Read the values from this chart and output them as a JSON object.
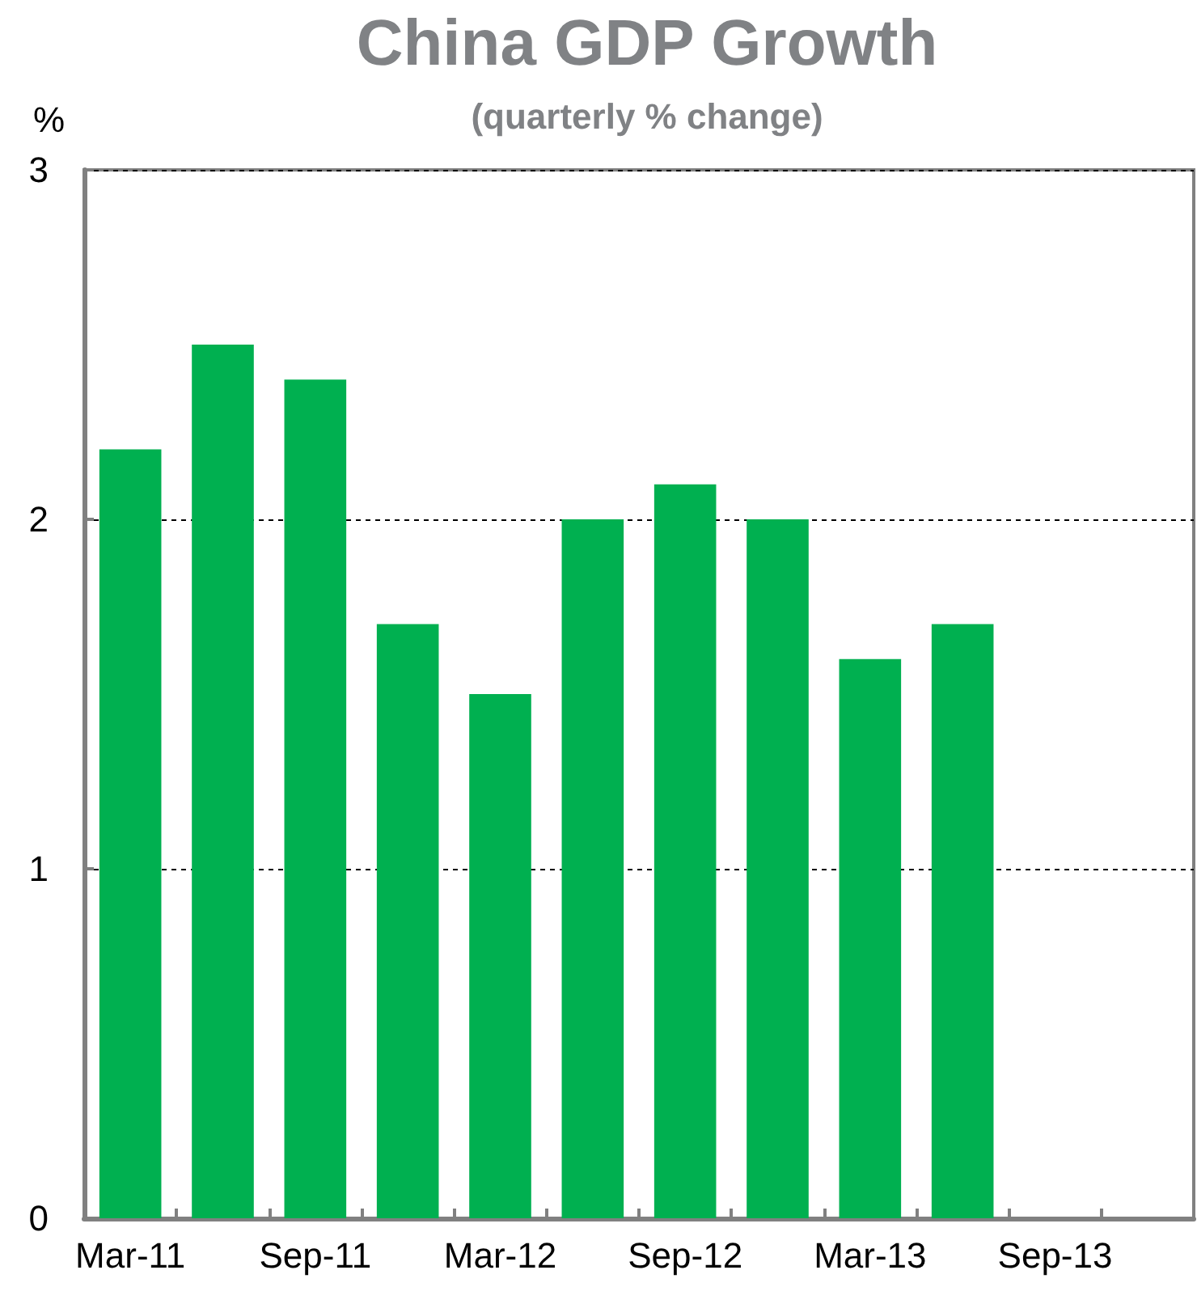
{
  "chart_data": {
    "type": "bar",
    "title": "China GDP Growth",
    "subtitle": "(quarterly % change)",
    "ylabel": "%",
    "categories": [
      "Mar-11",
      null,
      "Sep-11",
      null,
      "Mar-12",
      null,
      "Sep-12",
      null,
      "Mar-13",
      null,
      "Sep-13",
      null
    ],
    "values": [
      2.2,
      2.5,
      2.4,
      1.7,
      1.5,
      2.0,
      2.1,
      2.0,
      1.6,
      1.7,
      null,
      null
    ],
    "color": "#00b050",
    "ylim": [
      0,
      3
    ],
    "yticks": [
      0,
      1,
      2,
      3
    ],
    "grid": "y"
  }
}
